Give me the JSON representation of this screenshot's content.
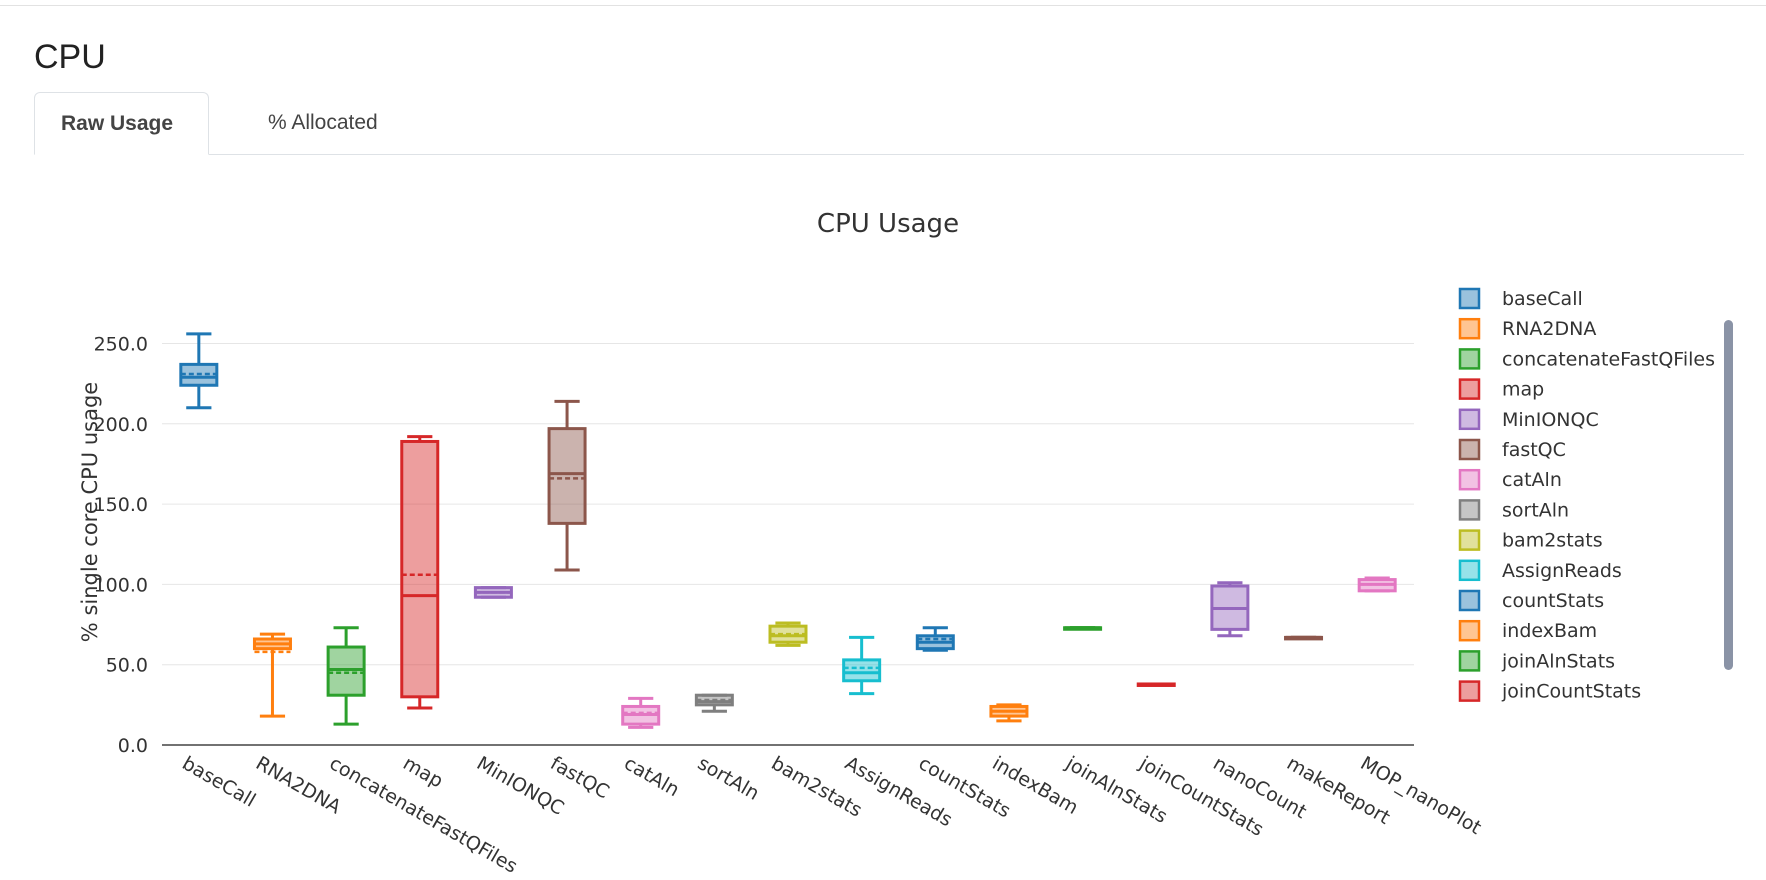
{
  "section": {
    "title": "CPU"
  },
  "tabs": [
    {
      "label": "Raw Usage",
      "active": true
    },
    {
      "label": "% Allocated",
      "active": false
    }
  ],
  "chart_data": {
    "type": "box",
    "title": "CPU Usage",
    "xlabel": "",
    "ylabel": "% single core CPU usage",
    "ylim": [
      0,
      265
    ],
    "yticks": [
      0,
      50,
      100,
      150,
      200,
      250
    ],
    "ytick_labels": [
      "0.0",
      "50.0",
      "100.0",
      "150.0",
      "200.0",
      "250.0"
    ],
    "grid": true,
    "legend_position": "right",
    "series": [
      {
        "name": "baseCall",
        "color": "#1f77b4",
        "min": 210,
        "q1": 224,
        "median": 229,
        "q3": 237,
        "max": 256,
        "mean": 231
      },
      {
        "name": "RNA2DNA",
        "color": "#ff7f0e",
        "min": 18,
        "q1": 60,
        "median": 63,
        "q3": 66,
        "max": 69,
        "mean": 58
      },
      {
        "name": "concatenateFastQFiles",
        "color": "#2ca02c",
        "min": 13,
        "q1": 31,
        "median": 47,
        "q3": 61,
        "max": 73,
        "mean": 45
      },
      {
        "name": "map",
        "color": "#d62728",
        "min": 23,
        "q1": 30,
        "median": 93,
        "q3": 189,
        "max": 192,
        "mean": 106
      },
      {
        "name": "MinIONQC",
        "color": "#9467bd",
        "min": 92,
        "q1": 92,
        "median": 95,
        "q3": 98,
        "max": 98,
        "mean": 95
      },
      {
        "name": "fastQC",
        "color": "#8c564b",
        "min": 109,
        "q1": 138,
        "median": 169,
        "q3": 197,
        "max": 214,
        "mean": 166
      },
      {
        "name": "catAln",
        "color": "#e377c2",
        "min": 11,
        "q1": 13,
        "median": 19,
        "q3": 24,
        "max": 29,
        "mean": 20
      },
      {
        "name": "sortAln",
        "color": "#7f7f7f",
        "min": 21,
        "q1": 25,
        "median": 27,
        "q3": 31,
        "max": 31,
        "mean": 28
      },
      {
        "name": "bam2stats",
        "color": "#bcbd22",
        "min": 62,
        "q1": 64,
        "median": 68,
        "q3": 74,
        "max": 76,
        "mean": 69
      },
      {
        "name": "AssignReads",
        "color": "#17becf",
        "min": 32,
        "q1": 40,
        "median": 45,
        "q3": 53,
        "max": 67,
        "mean": 48
      },
      {
        "name": "countStats",
        "color": "#1f77b4",
        "min": 59,
        "q1": 60,
        "median": 64,
        "q3": 68,
        "max": 73,
        "mean": 66
      },
      {
        "name": "indexBam",
        "color": "#ff7f0e",
        "min": 15,
        "q1": 18,
        "median": 21,
        "q3": 24,
        "max": 25,
        "mean": 21
      },
      {
        "name": "joinAlnStats",
        "color": "#2ca02c",
        "min": 73,
        "q1": 73,
        "median": 73,
        "q3": 73,
        "max": 73,
        "mean": 73
      },
      {
        "name": "joinCountStats",
        "color": "#d62728",
        "min": 38,
        "q1": 38,
        "median": 38,
        "q3": 38,
        "max": 38,
        "mean": 38
      },
      {
        "name": "nanoCount",
        "color": "#9467bd",
        "min": 68,
        "q1": 72,
        "median": 85,
        "q3": 99,
        "max": 101,
        "mean": 85
      },
      {
        "name": "makeReport",
        "color": "#8c564b",
        "min": 67,
        "q1": 67,
        "median": 67,
        "q3": 67,
        "max": 67,
        "mean": 67
      },
      {
        "name": "MOP_nanoPlot",
        "color": "#e377c2",
        "min": 96,
        "q1": 96,
        "median": 100,
        "q3": 103,
        "max": 104,
        "mean": 100
      }
    ],
    "legend_visible": [
      "baseCall",
      "RNA2DNA",
      "concatenateFastQFiles",
      "map",
      "MinIONQC",
      "fastQC",
      "catAln",
      "sortAln",
      "bam2stats",
      "AssignReads",
      "countStats",
      "indexBam",
      "joinAlnStats",
      "joinCountStats"
    ]
  }
}
